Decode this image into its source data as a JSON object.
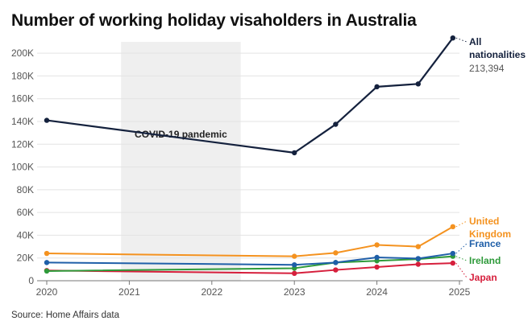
{
  "title": "Number of working holiday visaholders in Australia",
  "source": "Source: Home Affairs data",
  "chart_data": {
    "type": "line",
    "title": "Number of working holiday visaholders in Australia",
    "xlabel": "",
    "ylabel": "",
    "xlim": [
      2020,
      2025
    ],
    "ylim": [
      0,
      210000
    ],
    "x_ticks": [
      2020,
      2021,
      2022,
      2023,
      2024,
      2025
    ],
    "x_tick_labels": [
      "2020",
      "2021",
      "2022",
      "2023",
      "2024",
      "2025"
    ],
    "y_ticks": [
      0,
      20000,
      40000,
      60000,
      80000,
      100000,
      120000,
      140000,
      160000,
      180000,
      200000
    ],
    "y_tick_labels": [
      "0",
      "20K",
      "40K",
      "60K",
      "80K",
      "100K",
      "120K",
      "140K",
      "160K",
      "180K",
      "200K"
    ],
    "grid": true,
    "legend": "none (direct labels at line ends)",
    "shaded_region": {
      "x_start": 2020.9,
      "x_end": 2022.35,
      "label": "COVID-19 pandemic",
      "color": "#efefef"
    },
    "series": [
      {
        "name": "All nationalities",
        "value_label": "213,394",
        "color": "#14213d",
        "x": [
          2020,
          2023,
          2023.5,
          2024,
          2024.5,
          2024.92
        ],
        "values": [
          141000,
          112500,
          137500,
          170500,
          173000,
          213394
        ]
      },
      {
        "name": "United Kingdom",
        "color": "#f4921f",
        "x": [
          2020,
          2023,
          2023.5,
          2024,
          2024.5,
          2024.92
        ],
        "values": [
          24000,
          21500,
          24500,
          31500,
          30000,
          47500
        ]
      },
      {
        "name": "France",
        "color": "#1f5fa8",
        "x": [
          2020,
          2023,
          2023.5,
          2024,
          2024.5,
          2024.92
        ],
        "values": [
          16000,
          14000,
          16000,
          20500,
          19500,
          24000
        ]
      },
      {
        "name": "Ireland",
        "color": "#2e9a3a",
        "x": [
          2020,
          2023,
          2023.5,
          2024,
          2024.5,
          2024.92
        ],
        "values": [
          8500,
          11000,
          16000,
          17500,
          19000,
          21500
        ]
      },
      {
        "name": "Japan",
        "color": "#d61f3c",
        "x": [
          2020,
          2023,
          2023.5,
          2024,
          2024.5,
          2024.92
        ],
        "values": [
          9000,
          6500,
          9500,
          12000,
          14500,
          15500
        ]
      }
    ]
  }
}
